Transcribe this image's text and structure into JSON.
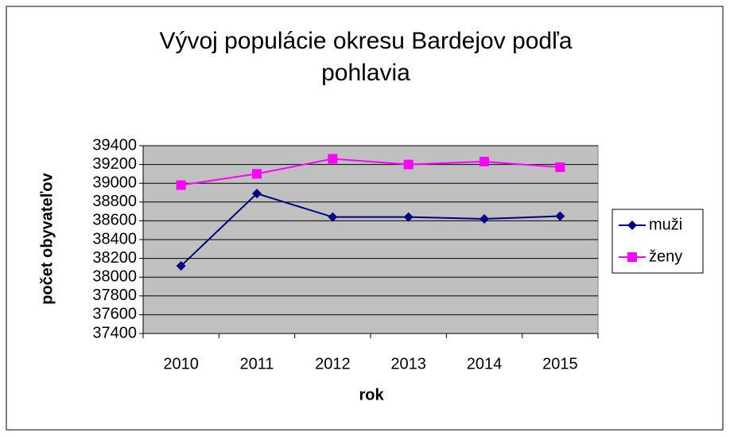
{
  "chart_data": {
    "type": "line",
    "title": "Vývoj populácie okresu Bardejov podľa pohlavia",
    "x_label": "rok",
    "y_label": "počet obyvateľov",
    "categories": [
      "2010",
      "2011",
      "2012",
      "2013",
      "2014",
      "2015"
    ],
    "series": [
      {
        "name": "muži",
        "color": "#000080",
        "marker": "diamond",
        "values": [
          38120,
          38890,
          38640,
          38640,
          38620,
          38650
        ]
      },
      {
        "name": "ženy",
        "color": "#ff00ff",
        "marker": "square",
        "values": [
          38980,
          39100,
          39260,
          39200,
          39230,
          39170
        ]
      }
    ],
    "ylim": [
      37400,
      39400
    ],
    "yticks": [
      37400,
      37600,
      37800,
      38000,
      38200,
      38400,
      38600,
      38800,
      39000,
      39200,
      39400
    ],
    "grid": true,
    "legend": "right",
    "plot_background": "#c0c0c0"
  }
}
